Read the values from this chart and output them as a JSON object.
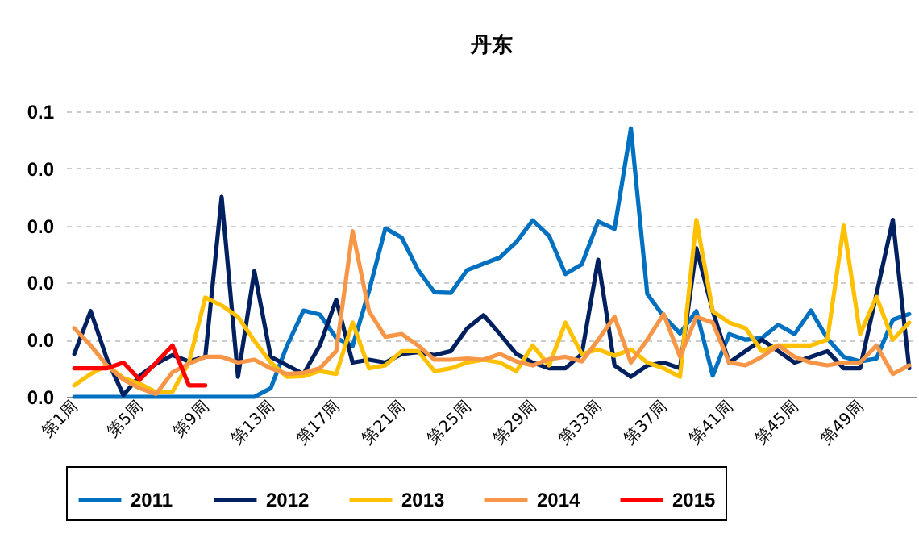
{
  "chart_data": {
    "type": "line",
    "title": "丹东",
    "categories": [
      "第1周",
      null,
      null,
      null,
      "第5周",
      null,
      null,
      null,
      "第9周",
      null,
      null,
      null,
      "第13周",
      null,
      null,
      null,
      "第17周",
      null,
      null,
      null,
      "第21周",
      null,
      null,
      null,
      "第25周",
      null,
      null,
      null,
      "第29周",
      null,
      null,
      null,
      "第33周",
      null,
      null,
      null,
      "第37周",
      null,
      null,
      null,
      "第41周",
      null,
      null,
      null,
      "第45周",
      null,
      null,
      null,
      "第49周",
      null,
      null,
      null
    ],
    "series": [
      {
        "name": "2011",
        "color": "#0070c0",
        "values": [
          0,
          0,
          0,
          0,
          0,
          0,
          0,
          0,
          0,
          0,
          0,
          0,
          0.0015,
          0.009,
          0.0151,
          0.0144,
          0.0103,
          0.0089,
          0.0185,
          0.0295,
          0.0279,
          0.0222,
          0.0183,
          0.0182,
          0.0222,
          0.0233,
          0.0244,
          0.0271,
          0.0309,
          0.0282,
          0.0215,
          0.0232,
          0.0307,
          0.0294,
          0.047,
          0.018,
          0.0141,
          0.0111,
          0.015,
          0.0037,
          0.011,
          0.01,
          0.0103,
          0.0126,
          0.011,
          0.0151,
          0.0102,
          0.007,
          0.0062,
          0.0067,
          0.0135,
          0.0145
        ]
      },
      {
        "name": "2012",
        "color": "#002060",
        "values": [
          0.0075,
          0.015,
          0.0066,
          0.0003,
          0.0037,
          0.0058,
          0.0073,
          0.0062,
          0.007,
          0.035,
          0.0035,
          0.022,
          0.007,
          0.0055,
          0.004,
          0.009,
          0.017,
          0.006,
          0.0065,
          0.006,
          0.0075,
          0.0078,
          0.0073,
          0.008,
          0.012,
          0.0143,
          0.011,
          0.0075,
          0.006,
          0.005,
          0.005,
          0.0075,
          0.024,
          0.0055,
          0.0035,
          0.0055,
          0.006,
          0.005,
          0.026,
          0.015,
          0.006,
          0.008,
          0.01,
          0.008,
          0.006,
          0.007,
          0.008,
          0.005,
          0.005,
          0.018,
          0.031,
          0.005
        ]
      },
      {
        "name": "2013",
        "color": "#ffc000",
        "values": [
          0.002,
          0.004,
          0.0055,
          0.0033,
          0.0023,
          0.0008,
          0.0009,
          0.006,
          0.0174,
          0.016,
          0.014,
          0.0098,
          0.006,
          0.0035,
          0.0036,
          0.0045,
          0.004,
          0.013,
          0.005,
          0.0055,
          0.008,
          0.008,
          0.0045,
          0.005,
          0.006,
          0.0065,
          0.006,
          0.0045,
          0.009,
          0.0055,
          0.013,
          0.0075,
          0.0083,
          0.0072,
          0.0083,
          0.006,
          0.005,
          0.0035,
          0.031,
          0.015,
          0.013,
          0.012,
          0.008,
          0.009,
          0.009,
          0.009,
          0.01,
          0.03,
          0.011,
          0.0175,
          0.01,
          0.013
        ]
      },
      {
        "name": "2014",
        "color": "#f79646",
        "values": [
          0.012,
          0.009,
          0.0055,
          0.003,
          0.0015,
          0.0005,
          0.0043,
          0.0058,
          0.007,
          0.007,
          0.006,
          0.0065,
          0.005,
          0.004,
          0.0042,
          0.005,
          0.008,
          0.029,
          0.015,
          0.0105,
          0.011,
          0.009,
          0.0065,
          0.0065,
          0.0067,
          0.0065,
          0.0075,
          0.0062,
          0.0055,
          0.0066,
          0.007,
          0.0062,
          0.01,
          0.014,
          0.006,
          0.01,
          0.0145,
          0.007,
          0.014,
          0.013,
          0.006,
          0.0055,
          0.007,
          0.009,
          0.007,
          0.006,
          0.0055,
          0.006,
          0.006,
          0.009,
          0.004,
          0.0055
        ]
      },
      {
        "name": "2015",
        "color": "#ff0000",
        "values": [
          0.005,
          0.005,
          0.005,
          0.006,
          0.003,
          0.006,
          0.009,
          0.002,
          0.002,
          null,
          null,
          null,
          null,
          null,
          null,
          null,
          null,
          null,
          null,
          null,
          null,
          null,
          null,
          null,
          null,
          null,
          null,
          null,
          null,
          null,
          null,
          null,
          null,
          null,
          null,
          null,
          null,
          null,
          null,
          null,
          null,
          null,
          null,
          null,
          null,
          null,
          null,
          null,
          null,
          null,
          null,
          null
        ]
      }
    ],
    "ylim": [
      0,
      0.05
    ],
    "yticks": [
      {
        "value": 0,
        "label": "0.0"
      },
      {
        "value": 0.01,
        "label": "0.0"
      },
      {
        "value": 0.02,
        "label": "0.0"
      },
      {
        "value": 0.03,
        "label": "0.0"
      },
      {
        "value": 0.04,
        "label": "0.0"
      },
      {
        "value": 0.05,
        "label": "0.1"
      }
    ],
    "grid": "y",
    "legend": "bottom",
    "marker": "none",
    "line_style": "solid"
  }
}
